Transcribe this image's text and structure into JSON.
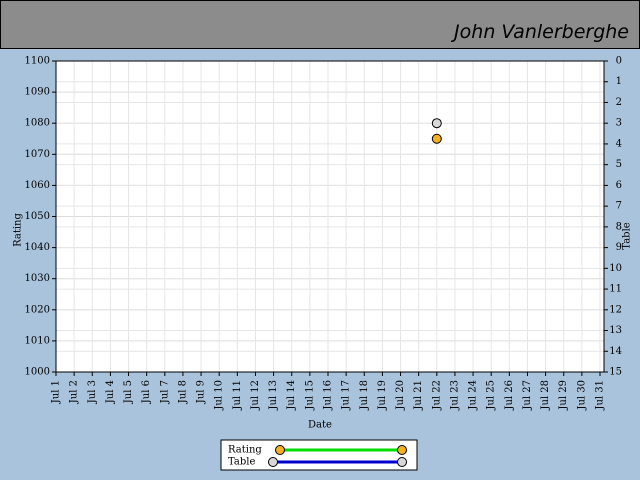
{
  "header": {
    "title": "John Vanlerberghe"
  },
  "chart_data": {
    "type": "line",
    "xlabel": "Date",
    "ylabel": "Rating",
    "y2label": "Table",
    "categories": [
      "Jul 1",
      "Jul 2",
      "Jul 3",
      "Jul 4",
      "Jul 5",
      "Jul 6",
      "Jul 7",
      "Jul 8",
      "Jul 9",
      "Jul 10",
      "Jul 11",
      "Jul 12",
      "Jul 13",
      "Jul 14",
      "Jul 15",
      "Jul 16",
      "Jul 17",
      "Jul 18",
      "Jul 19",
      "Jul 20",
      "Jul 21",
      "Jul 22",
      "Jul 23",
      "Jul 24",
      "Jul 25",
      "Jul 26",
      "Jul 27",
      "Jul 28",
      "Jul 29",
      "Jul 30",
      "Jul 31"
    ],
    "series": [
      {
        "name": "Rating",
        "color": "#00dd00",
        "marker_color": "#f5b21e",
        "values": [
          null,
          null,
          null,
          null,
          null,
          null,
          null,
          null,
          null,
          null,
          null,
          null,
          null,
          null,
          null,
          null,
          null,
          null,
          null,
          null,
          null,
          1075,
          null,
          null,
          null,
          null,
          null,
          null,
          null,
          null,
          null
        ]
      },
      {
        "name": "Table",
        "color": "#0000cc",
        "marker_color": "#d8d8d8",
        "axis": "y2",
        "values": [
          null,
          null,
          null,
          null,
          null,
          null,
          null,
          null,
          null,
          null,
          null,
          null,
          null,
          null,
          null,
          null,
          null,
          null,
          null,
          null,
          null,
          3,
          null,
          null,
          null,
          null,
          null,
          null,
          null,
          null,
          null
        ]
      }
    ],
    "ylim": [
      1000,
      1100
    ],
    "yticks": [
      1000,
      1010,
      1020,
      1030,
      1040,
      1050,
      1060,
      1070,
      1080,
      1090,
      1100
    ],
    "y2lim": [
      15,
      0
    ],
    "y2ticks": [
      0,
      1,
      2,
      3,
      4,
      5,
      6,
      7,
      8,
      9,
      10,
      11,
      12,
      13,
      14,
      15
    ],
    "grid": true
  }
}
